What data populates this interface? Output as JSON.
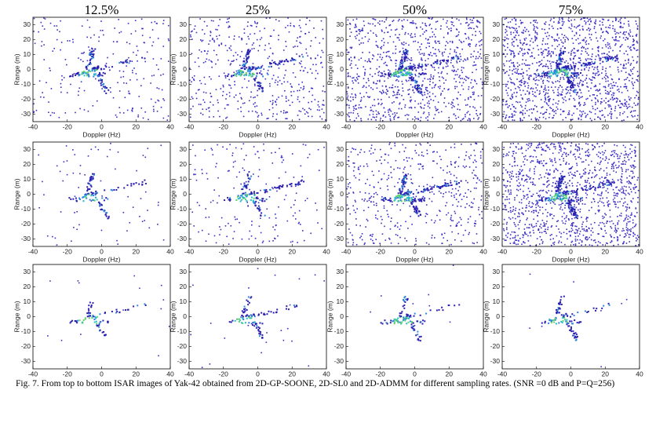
{
  "figure": {
    "columns": [
      "12.5%",
      "25%",
      "50%",
      "75%"
    ],
    "axes": {
      "xlabel": "Doppler (Hz)",
      "ylabel": "Range (m)",
      "xlim": [
        -40,
        40
      ],
      "ylim": [
        -35,
        35
      ],
      "xticks": [
        -40,
        -20,
        0,
        20,
        40
      ],
      "yticks": [
        -30,
        -20,
        -10,
        0,
        10,
        20,
        30
      ]
    },
    "caption": "Fig. 7.  From top to bottom ISAR images of Yak-42 obtained from 2D-GP-SOONE, 2D-SL0 and 2D-ADMM for different sampling rates. (SNR =0 dB and P=Q=256)"
  }
}
